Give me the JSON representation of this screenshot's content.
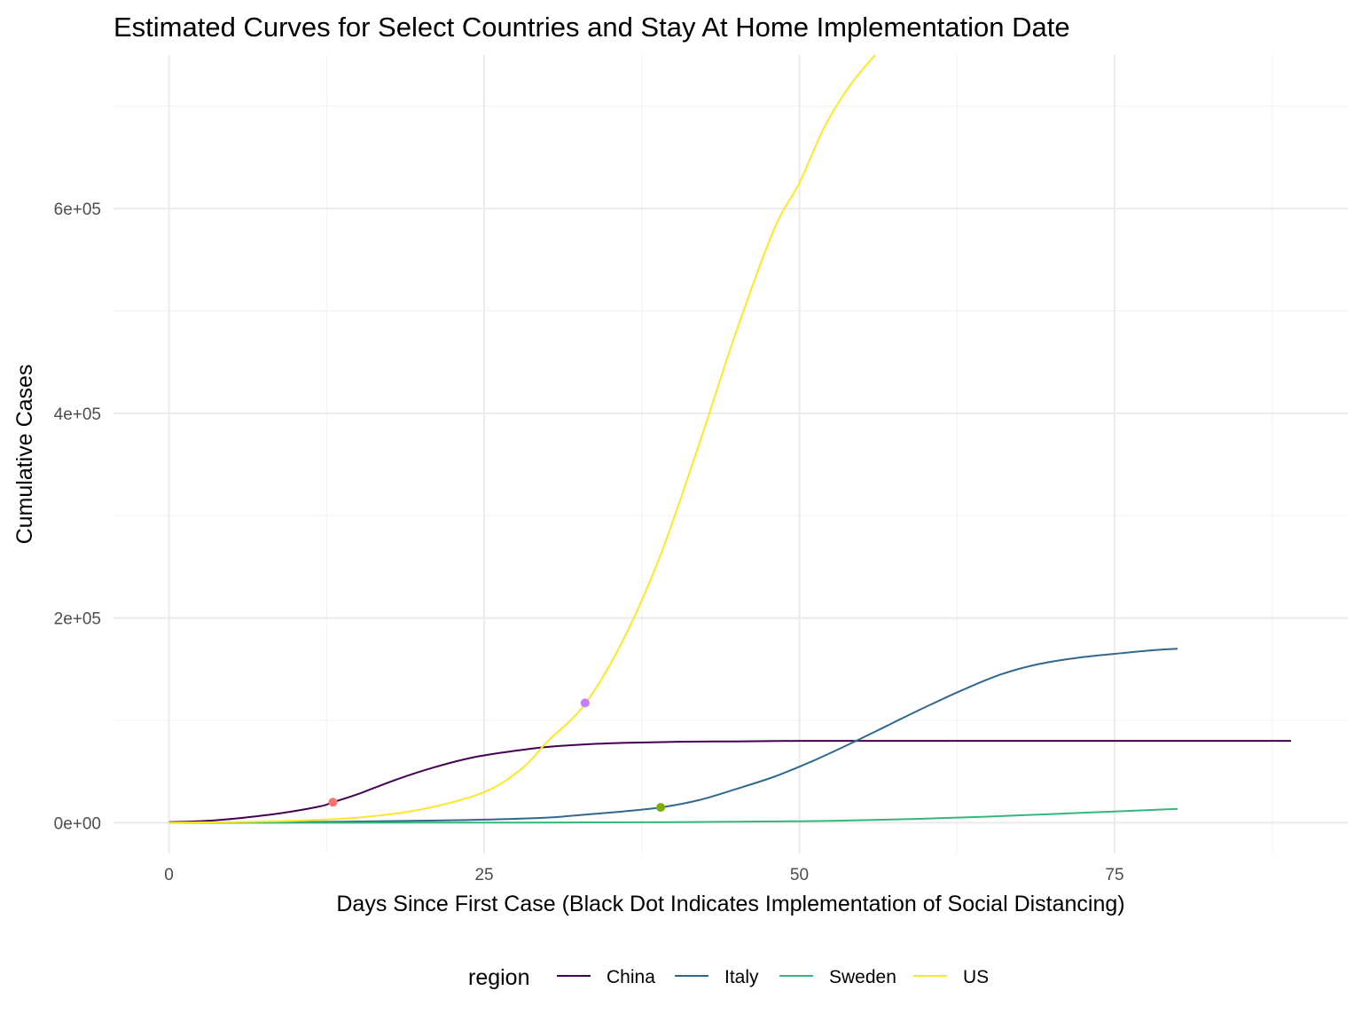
{
  "chart_data": {
    "type": "line",
    "title": "Estimated Curves for Select Countries and Stay At Home Implementation Date",
    "xlabel": "Days Since First Case (Black Dot Indicates Implementation of Social Distancing)",
    "ylabel": "Cumulative Cases",
    "xlim": [
      -4.4,
      93.5
    ],
    "ylim": [
      -30000,
      750000
    ],
    "x_ticks": [
      0,
      25,
      50,
      75
    ],
    "x_tick_labels": [
      "0",
      "25",
      "50",
      "75"
    ],
    "y_ticks": [
      0,
      200000,
      400000,
      600000
    ],
    "y_tick_labels": [
      "0e+00",
      "2e+05",
      "4e+05",
      "6e+05"
    ],
    "grid": true,
    "legend": {
      "title": "region",
      "position": "bottom"
    },
    "series": [
      {
        "name": "China",
        "color": "#440154",
        "x": [
          0,
          3,
          6,
          9,
          12,
          13,
          15,
          18,
          21,
          24,
          27,
          30,
          33,
          36,
          40,
          45,
          50,
          60,
          70,
          80,
          89
        ],
        "y": [
          600,
          1800,
          5000,
          9500,
          16000,
          20000,
          28000,
          42000,
          54000,
          63500,
          69500,
          74000,
          76500,
          78000,
          79000,
          79500,
          80000,
          80000,
          80000,
          80000,
          80000
        ]
      },
      {
        "name": "Italy",
        "color": "#31688e",
        "x": [
          0,
          10,
          20,
          25,
          30,
          33,
          36,
          39,
          42,
          45,
          48,
          51,
          54,
          57,
          60,
          63,
          66,
          69,
          72,
          75,
          78,
          80
        ],
        "y": [
          0,
          500,
          2000,
          3000,
          5000,
          8000,
          11000,
          15000,
          22000,
          33000,
          45000,
          60000,
          77000,
          95000,
          113000,
          130000,
          145000,
          155000,
          161000,
          165000,
          168500,
          170000
        ]
      },
      {
        "name": "Sweden",
        "color": "#35b779",
        "x": [
          0,
          20,
          40,
          50,
          55,
          60,
          65,
          70,
          75,
          80
        ],
        "y": [
          0,
          100,
          500,
          1500,
          2500,
          4000,
          6000,
          8500,
          11000,
          13500
        ]
      },
      {
        "name": "US",
        "color": "#fde725",
        "x": [
          0,
          5,
          10,
          15,
          20,
          25,
          28,
          30,
          33,
          36,
          39,
          42,
          45,
          48,
          50,
          52,
          54,
          56
        ],
        "y": [
          0,
          600,
          2000,
          5000,
          13000,
          30000,
          53000,
          79000,
          116000,
          178000,
          262000,
          368000,
          480000,
          580000,
          625000,
          680000,
          720000,
          750000
        ]
      }
    ],
    "points": [
      {
        "x": 13,
        "y": 20000,
        "color": "#f8766d"
      },
      {
        "x": 33,
        "y": 117000,
        "color": "#c77cff"
      },
      {
        "x": 39,
        "y": 15000,
        "color": "#7cae00"
      }
    ]
  }
}
